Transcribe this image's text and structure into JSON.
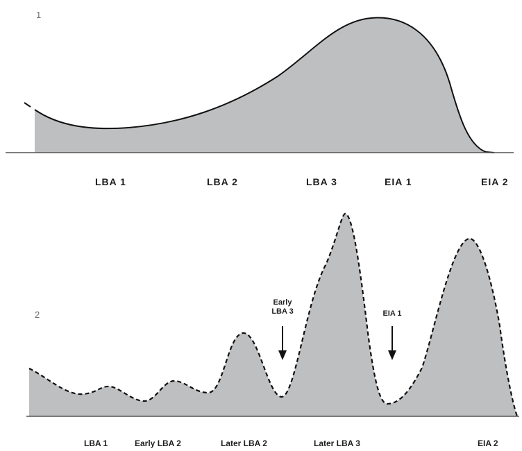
{
  "panel_1": {
    "number": "1",
    "labels": [
      "LBA 1",
      "LBA 2",
      "LBA 3",
      "EIA 1",
      "EIA 2"
    ]
  },
  "panel_2": {
    "number": "2",
    "labels": [
      "LBA 1",
      "Early LBA 2",
      "Later LBA 2",
      "Later LBA 3",
      "EIA 2"
    ],
    "annotations": [
      {
        "lines": [
          "Early",
          "LBA 3"
        ]
      },
      {
        "lines": [
          "EIA 1"
        ]
      }
    ]
  },
  "colors": {
    "fill": "#bebfc1",
    "stroke": "#111111",
    "baseline": "#555555",
    "label": "#1e1e1e"
  }
}
